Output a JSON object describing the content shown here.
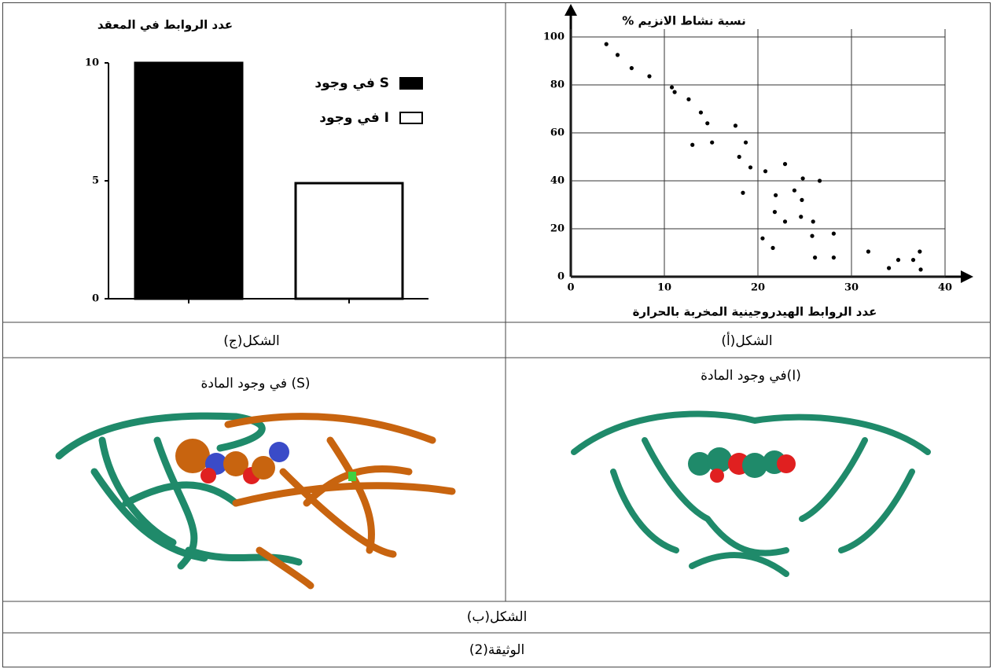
{
  "chart_data": [
    {
      "type": "bar",
      "title": "عدد الروابط في المعقد",
      "categories": [
        null,
        null
      ],
      "series": [
        {
          "name": "في وجود S",
          "color": "#000000",
          "values": [
            10,
            null
          ]
        },
        {
          "name": "في وجود I",
          "color": "#ffffff",
          "values": [
            null,
            4.9
          ]
        }
      ],
      "ylim": [
        0,
        10
      ],
      "yticks": [
        0,
        5,
        10
      ],
      "grid": false
    },
    {
      "type": "scatter",
      "y_label": "% نسبة نشاط الانزيم",
      "x_label": "عدد الروابط الهيدروجينية المخربة بالحرارة",
      "x": [
        3.8,
        5.0,
        6.5,
        8.4,
        10.8,
        11.1,
        12.6,
        13.9,
        14.6,
        17.6,
        13.0,
        15.1,
        18.7,
        18.0,
        19.2,
        20.8,
        22.9,
        24.8,
        26.6,
        18.4,
        21.9,
        23.9,
        24.7,
        21.8,
        22.9,
        24.6,
        25.9,
        20.5,
        21.6,
        25.8,
        28.1,
        26.1,
        28.1,
        31.8,
        34.0,
        35.0,
        36.6,
        37.3,
        37.4
      ],
      "values": [
        97,
        92.5,
        87,
        83.6,
        79,
        77,
        74,
        68.5,
        64,
        63,
        55,
        56,
        56,
        50,
        45.6,
        44,
        47,
        41,
        40,
        35,
        34,
        36,
        32,
        27,
        23,
        25,
        23,
        16,
        12,
        17,
        18,
        8,
        8,
        10.5,
        3.6,
        7,
        7,
        10.5,
        3
      ],
      "color": "#000000",
      "xlim": [
        0,
        40
      ],
      "ylim": [
        0,
        100
      ],
      "xticks": [
        0,
        10,
        20,
        30,
        40
      ],
      "yticks": [
        0,
        20,
        40,
        60,
        80,
        100
      ],
      "grid": true
    }
  ],
  "captions": {
    "figure_c": "الشكل(ج)",
    "figure_a": "الشكل(أ)",
    "panel_s": "في وجود المادة (S)",
    "panel_i": "في وجود المادة(I)",
    "figure_b": "الشكل(ب)",
    "document": "الوثيقة(2)"
  }
}
